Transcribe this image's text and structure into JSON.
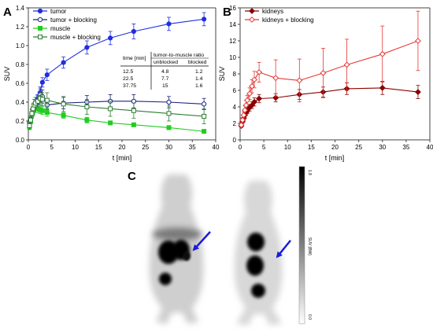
{
  "panels": {
    "a": "A",
    "b": "B",
    "c": "C"
  },
  "chart_data": [
    {
      "type": "line",
      "panel": "A",
      "xlabel": "t [min]",
      "ylabel": "SUV",
      "xlim": [
        0,
        40
      ],
      "ylim": [
        0,
        1.4
      ],
      "xticks": [
        0,
        5,
        10,
        15,
        20,
        25,
        30,
        35,
        40
      ],
      "yticks": [
        0.0,
        0.2,
        0.4,
        0.6,
        0.8,
        1.0,
        1.2,
        1.4
      ],
      "grid": false,
      "legend_position": "top-left",
      "series": [
        {
          "name": "tumor",
          "color": "#1f2fe0",
          "marker": "circle",
          "filled": true,
          "x": [
            0.25,
            0.5,
            0.75,
            1,
            1.25,
            1.5,
            2,
            2.5,
            3,
            4,
            7.5,
            12.5,
            17.5,
            22.5,
            30,
            37.5
          ],
          "y": [
            0.18,
            0.22,
            0.27,
            0.3,
            0.35,
            0.39,
            0.44,
            0.5,
            0.61,
            0.69,
            0.82,
            0.98,
            1.08,
            1.15,
            1.23,
            1.28
          ],
          "err": [
            0.03,
            0.03,
            0.03,
            0.04,
            0.04,
            0.04,
            0.04,
            0.04,
            0.05,
            0.06,
            0.06,
            0.07,
            0.07,
            0.08,
            0.07,
            0.07
          ]
        },
        {
          "name": "tumor + blocking",
          "color": "#1a237e",
          "marker": "circle",
          "filled": false,
          "x": [
            0.25,
            0.5,
            0.75,
            1,
            1.25,
            1.5,
            2,
            2.5,
            3,
            4,
            7.5,
            12.5,
            17.5,
            22.5,
            30,
            37.5
          ],
          "y": [
            0.17,
            0.22,
            0.28,
            0.31,
            0.34,
            0.36,
            0.4,
            0.48,
            0.46,
            0.37,
            0.39,
            0.4,
            0.41,
            0.41,
            0.4,
            0.38
          ],
          "err": [
            0.03,
            0.03,
            0.04,
            0.04,
            0.04,
            0.05,
            0.05,
            0.08,
            0.07,
            0.05,
            0.06,
            0.07,
            0.07,
            0.07,
            0.06,
            0.06
          ]
        },
        {
          "name": "muscle",
          "color": "#22cc22",
          "marker": "square",
          "filled": true,
          "x": [
            0.25,
            0.5,
            0.75,
            1,
            1.25,
            1.5,
            2,
            2.5,
            3,
            4,
            7.5,
            12.5,
            17.5,
            22.5,
            30,
            37.5
          ],
          "y": [
            0.14,
            0.2,
            0.27,
            0.31,
            0.33,
            0.33,
            0.33,
            0.32,
            0.31,
            0.29,
            0.26,
            0.21,
            0.18,
            0.16,
            0.13,
            0.09
          ],
          "err": [
            0.03,
            0.03,
            0.03,
            0.04,
            0.04,
            0.04,
            0.04,
            0.04,
            0.04,
            0.04,
            0.03,
            0.03,
            0.02,
            0.02,
            0.02,
            0.02
          ]
        },
        {
          "name": "muscle + blocking",
          "color": "#2e7d32",
          "marker": "square",
          "filled": false,
          "x": [
            0.25,
            0.5,
            0.75,
            1,
            1.25,
            1.5,
            2,
            2.5,
            3,
            4,
            7.5,
            12.5,
            17.5,
            22.5,
            30,
            37.5
          ],
          "y": [
            0.15,
            0.21,
            0.28,
            0.33,
            0.37,
            0.39,
            0.41,
            0.44,
            0.43,
            0.42,
            0.38,
            0.35,
            0.33,
            0.31,
            0.28,
            0.25
          ],
          "err": [
            0.04,
            0.04,
            0.05,
            0.05,
            0.06,
            0.06,
            0.06,
            0.07,
            0.07,
            0.08,
            0.08,
            0.08,
            0.08,
            0.08,
            0.08,
            0.08
          ]
        }
      ],
      "table": {
        "headers": [
          "time [min]",
          "tumor-to-muscle ratio"
        ],
        "subheaders": [
          "unblocked",
          "blocked"
        ],
        "rows": [
          [
            "12.5",
            "4.8",
            "1.2"
          ],
          [
            "22.5",
            "7.7",
            "1.4"
          ],
          [
            "37.75",
            "15",
            "1.6"
          ]
        ]
      }
    },
    {
      "type": "line",
      "panel": "B",
      "xlabel": "t [min]",
      "ylabel": "SUV",
      "xlim": [
        0,
        40
      ],
      "ylim": [
        0,
        16
      ],
      "xticks": [
        0,
        5,
        10,
        15,
        20,
        25,
        30,
        35,
        40
      ],
      "yticks": [
        0,
        2,
        4,
        6,
        8,
        10,
        12,
        14,
        16
      ],
      "grid": false,
      "legend_position": "top-left",
      "series": [
        {
          "name": "kidneys",
          "color": "#8b0000",
          "marker": "diamond",
          "filled": true,
          "x": [
            0.25,
            0.5,
            0.75,
            1,
            1.25,
            1.5,
            2,
            2.5,
            3,
            4,
            7.5,
            12.5,
            17.5,
            22.5,
            30,
            37.5
          ],
          "y": [
            1.7,
            2.2,
            2.6,
            3.0,
            3.3,
            3.5,
            3.9,
            4.2,
            4.6,
            5.0,
            5.1,
            5.5,
            5.8,
            6.2,
            6.3,
            5.8
          ],
          "err": [
            0.2,
            0.2,
            0.3,
            0.3,
            0.3,
            0.3,
            0.4,
            0.4,
            0.5,
            0.5,
            0.5,
            0.6,
            0.6,
            0.7,
            0.8,
            0.8
          ]
        },
        {
          "name": "kidneys + blocking",
          "color": "#e53935",
          "marker": "diamond",
          "filled": false,
          "x": [
            0.25,
            0.5,
            0.75,
            1,
            1.25,
            1.5,
            2,
            2.5,
            3,
            4,
            7.5,
            12.5,
            17.5,
            22.5,
            30,
            37.5
          ],
          "y": [
            1.8,
            2.4,
            3.0,
            3.6,
            4.2,
            4.8,
            5.6,
            6.5,
            7.3,
            8.2,
            7.5,
            7.2,
            8.1,
            9.1,
            10.4,
            12.0
          ],
          "err": [
            0.3,
            0.3,
            0.4,
            0.5,
            0.6,
            0.6,
            0.7,
            0.8,
            1.0,
            1.2,
            2.2,
            2.6,
            3.0,
            3.1,
            3.4,
            3.6
          ]
        }
      ]
    }
  ],
  "pet_panel": {
    "colorbar_label": "SUV (BW)",
    "colorbar_max": "1.8",
    "colorbar_min": "0.0",
    "arrow_color": "#1a1adb"
  }
}
